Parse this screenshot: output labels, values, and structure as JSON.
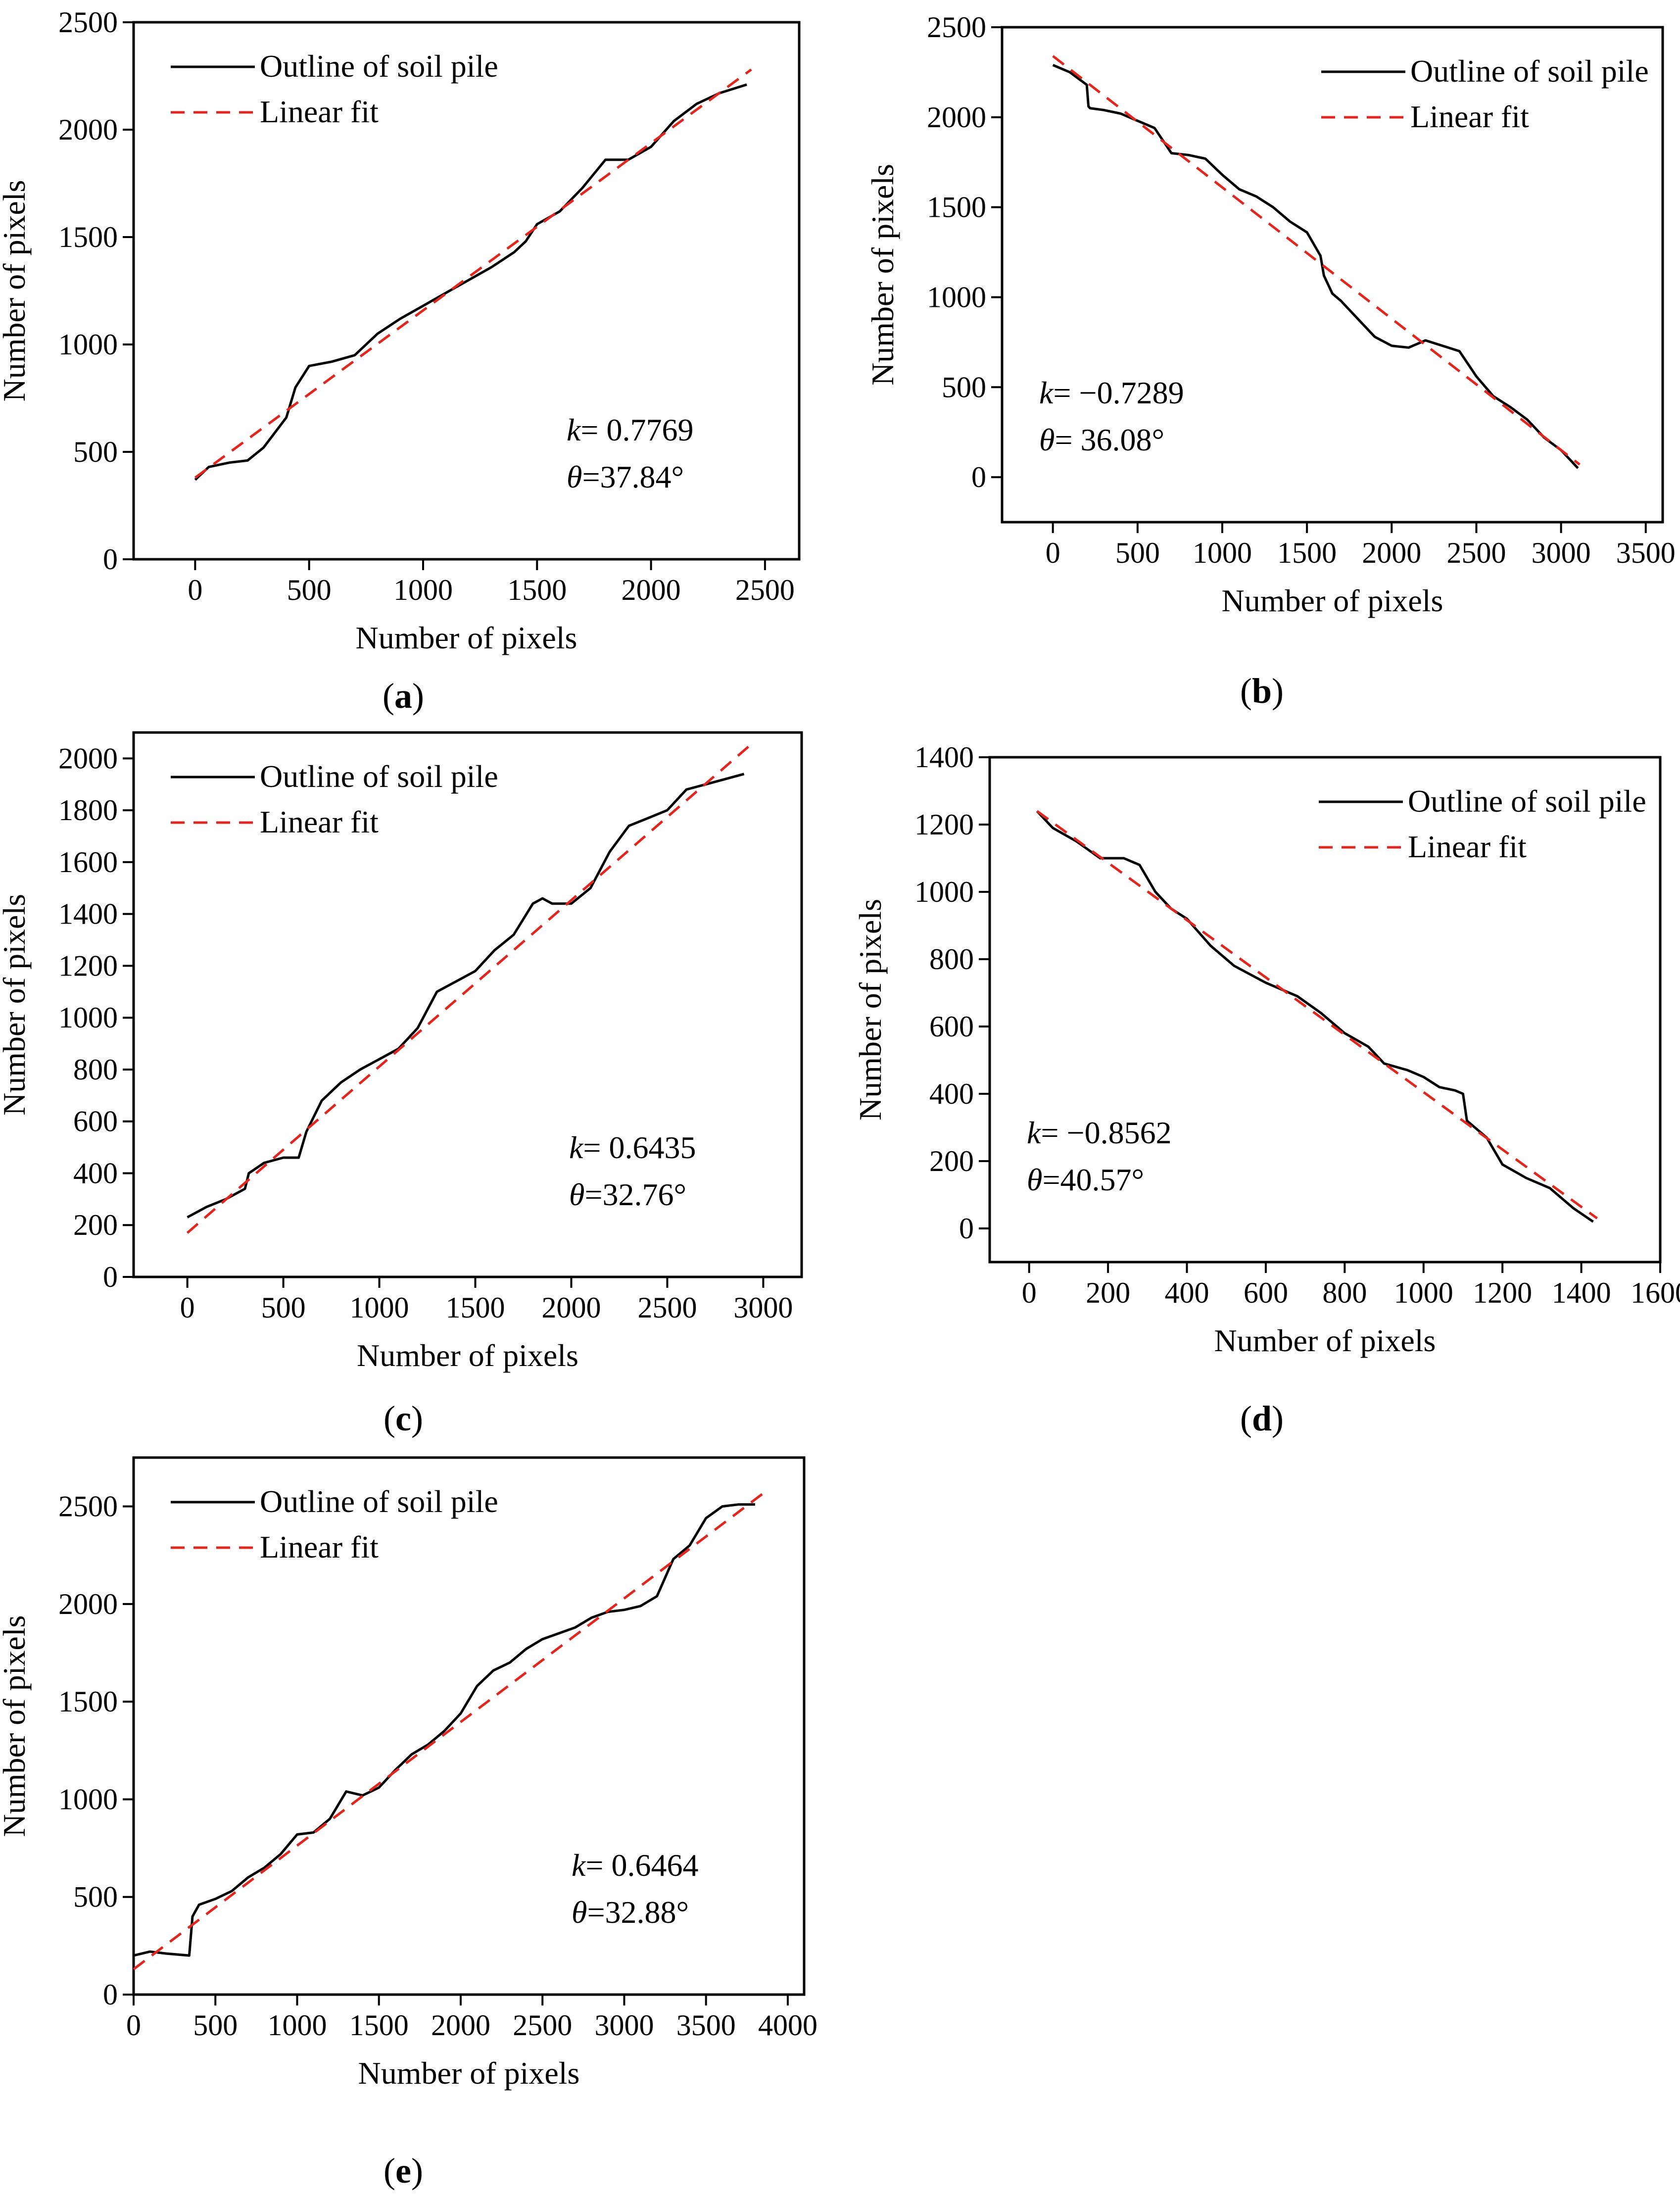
{
  "figure": {
    "colors": {
      "outline": "#000000",
      "fit": "#e8231b",
      "axis": "#000000"
    }
  },
  "chart_data": [
    {
      "id": "a",
      "type": "line",
      "caption_letter": "a",
      "xlabel": "Number of pixels",
      "ylabel": "Number of pixels",
      "xlim": [
        -270,
        2650
      ],
      "ylim": [
        0,
        2500
      ],
      "xticks": [
        0,
        500,
        1000,
        1500,
        2000,
        2500
      ],
      "yticks": [
        0,
        500,
        1000,
        1500,
        2000,
        2500
      ],
      "legend": [
        "Outline of soil pile",
        "Linear fit"
      ],
      "legend_position": "top-left",
      "annotation": {
        "k_symbol": "k",
        "k_value": "= 0.7769",
        "theta_symbol": "θ",
        "theta_value": "=37.84°",
        "position": "bottom-right"
      },
      "series": [
        {
          "name": "Outline of soil pile",
          "kind": "outline",
          "x": [
            0,
            60,
            150,
            230,
            300,
            400,
            440,
            500,
            600,
            700,
            800,
            900,
            1000,
            1100,
            1200,
            1300,
            1400,
            1450,
            1500,
            1600,
            1700,
            1800,
            1900,
            2000,
            2100,
            2200,
            2300,
            2420
          ],
          "y": [
            370,
            430,
            450,
            460,
            520,
            660,
            800,
            900,
            920,
            950,
            1050,
            1120,
            1180,
            1240,
            1300,
            1360,
            1430,
            1480,
            1560,
            1620,
            1730,
            1860,
            1860,
            1920,
            2040,
            2120,
            2170,
            2210
          ]
        },
        {
          "name": "Linear fit",
          "kind": "fit",
          "x": [
            0,
            2440
          ],
          "y": [
            380,
            2280
          ]
        }
      ]
    },
    {
      "id": "b",
      "type": "line",
      "caption_letter": "b",
      "xlabel": "Number of pixels",
      "ylabel": "Number of pixels",
      "xlim": [
        -300,
        3600
      ],
      "ylim": [
        -250,
        2500
      ],
      "xticks": [
        0,
        500,
        1000,
        1500,
        2000,
        2500,
        3000,
        3500
      ],
      "yticks": [
        0,
        500,
        1000,
        1500,
        2000,
        2500
      ],
      "legend": [
        "Outline of soil pile",
        "Linear fit"
      ],
      "legend_position": "top-right",
      "annotation": {
        "k_symbol": "k",
        "k_value": "= −0.7289",
        "theta_symbol": "θ",
        "theta_value": "= 36.08°",
        "position": "bottom-left"
      },
      "series": [
        {
          "name": "Outline of soil pile",
          "kind": "outline",
          "x": [
            0,
            100,
            200,
            210,
            220,
            300,
            400,
            500,
            600,
            700,
            800,
            900,
            1000,
            1100,
            1200,
            1300,
            1400,
            1500,
            1580,
            1600,
            1650,
            1700,
            1800,
            1900,
            2000,
            2100,
            2200,
            2300,
            2400,
            2500,
            2600,
            2700,
            2800,
            2900,
            3000,
            3100
          ],
          "y": [
            2290,
            2250,
            2180,
            2060,
            2050,
            2040,
            2020,
            1980,
            1940,
            1800,
            1790,
            1770,
            1680,
            1600,
            1560,
            1500,
            1420,
            1360,
            1230,
            1120,
            1020,
            980,
            880,
            780,
            730,
            720,
            760,
            730,
            700,
            560,
            450,
            390,
            320,
            220,
            150,
            50
          ]
        },
        {
          "name": "Linear fit",
          "kind": "fit",
          "x": [
            0,
            3110
          ],
          "y": [
            2340,
            70
          ]
        }
      ]
    },
    {
      "id": "c",
      "type": "line",
      "caption_letter": "c",
      "xlabel": "Number of pixels",
      "ylabel": "Number of pixels",
      "xlim": [
        -280,
        3200
      ],
      "ylim": [
        0,
        2100
      ],
      "xticks": [
        0,
        500,
        1000,
        1500,
        2000,
        2500,
        3000
      ],
      "yticks": [
        0,
        200,
        400,
        600,
        800,
        1000,
        1200,
        1400,
        1600,
        1800,
        2000
      ],
      "legend": [
        "Outline of soil pile",
        "Linear fit"
      ],
      "legend_position": "top-left",
      "annotation": {
        "k_symbol": "k",
        "k_value": "= 0.6435",
        "theta_symbol": "θ",
        "theta_value": "=32.76°",
        "position": "bottom-right"
      },
      "series": [
        {
          "name": "Outline of soil pile",
          "kind": "outline",
          "x": [
            0,
            100,
            200,
            300,
            320,
            400,
            500,
            580,
            620,
            700,
            800,
            900,
            1000,
            1100,
            1200,
            1300,
            1400,
            1500,
            1600,
            1700,
            1800,
            1850,
            1900,
            2000,
            2100,
            2200,
            2300,
            2400,
            2500,
            2600,
            2700,
            2800,
            2900
          ],
          "y": [
            230,
            270,
            300,
            340,
            400,
            440,
            460,
            460,
            560,
            680,
            750,
            800,
            840,
            880,
            960,
            1100,
            1140,
            1180,
            1260,
            1320,
            1440,
            1460,
            1440,
            1440,
            1500,
            1640,
            1740,
            1770,
            1800,
            1880,
            1900,
            1920,
            1940
          ]
        },
        {
          "name": "Linear fit",
          "kind": "fit",
          "x": [
            0,
            2930
          ],
          "y": [
            170,
            2050
          ]
        }
      ]
    },
    {
      "id": "d",
      "type": "line",
      "caption_letter": "d",
      "xlabel": "Number of pixels",
      "ylabel": "Number of pixels",
      "xlim": [
        -100,
        1600
      ],
      "ylim": [
        -100,
        1400
      ],
      "xticks": [
        0,
        200,
        400,
        600,
        800,
        1000,
        1200,
        1400,
        1600
      ],
      "yticks": [
        0,
        200,
        400,
        600,
        800,
        1000,
        1200,
        1400
      ],
      "legend": [
        "Outline of soil pile",
        "Linear fit"
      ],
      "legend_position": "top-right",
      "annotation": {
        "k_symbol": "k",
        "k_value": "= −0.8562",
        "theta_symbol": "θ",
        "theta_value": "=40.57°",
        "position": "bottom-left"
      },
      "series": [
        {
          "name": "Outline of soil pile",
          "kind": "outline",
          "x": [
            20,
            60,
            120,
            180,
            200,
            240,
            280,
            320,
            360,
            400,
            460,
            520,
            600,
            680,
            740,
            800,
            860,
            900,
            960,
            1000,
            1040,
            1080,
            1100,
            1110,
            1160,
            1200,
            1260,
            1320,
            1380,
            1430
          ],
          "y": [
            1240,
            1190,
            1150,
            1100,
            1100,
            1100,
            1080,
            1000,
            950,
            920,
            840,
            780,
            730,
            690,
            640,
            580,
            540,
            490,
            470,
            450,
            420,
            410,
            400,
            320,
            270,
            190,
            150,
            120,
            60,
            20
          ]
        },
        {
          "name": "Linear fit",
          "kind": "fit",
          "x": [
            20,
            1440
          ],
          "y": [
            1240,
            30
          ]
        }
      ]
    },
    {
      "id": "e",
      "type": "line",
      "caption_letter": "e",
      "xlabel": "Number of pixels",
      "ylabel": "Number of pixels",
      "xlim": [
        0,
        4100
      ],
      "ylim": [
        0,
        2750
      ],
      "xticks": [
        0,
        500,
        1000,
        1500,
        2000,
        2500,
        3000,
        3500,
        4000
      ],
      "yticks": [
        0,
        500,
        1000,
        1500,
        2000,
        2500
      ],
      "legend": [
        "Outline of soil pile",
        "Linear fit"
      ],
      "legend_position": "top-left",
      "annotation": {
        "k_symbol": "k",
        "k_value": "= 0.6464",
        "theta_symbol": "θ",
        "theta_value": "=32.88°",
        "position": "bottom-right"
      },
      "series": [
        {
          "name": "Outline of soil pile",
          "kind": "outline",
          "x": [
            0,
            100,
            200,
            340,
            360,
            400,
            500,
            600,
            700,
            800,
            900,
            1000,
            1100,
            1200,
            1300,
            1400,
            1500,
            1600,
            1700,
            1800,
            1900,
            2000,
            2100,
            2200,
            2300,
            2400,
            2500,
            2600,
            2700,
            2800,
            2900,
            3000,
            3100,
            3200,
            3300,
            3400,
            3500,
            3600,
            3700,
            3800
          ],
          "y": [
            200,
            220,
            210,
            200,
            400,
            460,
            490,
            530,
            600,
            650,
            720,
            820,
            830,
            900,
            1040,
            1020,
            1060,
            1150,
            1230,
            1280,
            1350,
            1440,
            1580,
            1660,
            1700,
            1770,
            1820,
            1850,
            1880,
            1930,
            1960,
            1970,
            1990,
            2040,
            2230,
            2300,
            2440,
            2500,
            2510,
            2510
          ]
        },
        {
          "name": "Linear fit",
          "kind": "fit",
          "x": [
            0,
            3870
          ],
          "y": [
            130,
            2580
          ]
        }
      ]
    }
  ]
}
